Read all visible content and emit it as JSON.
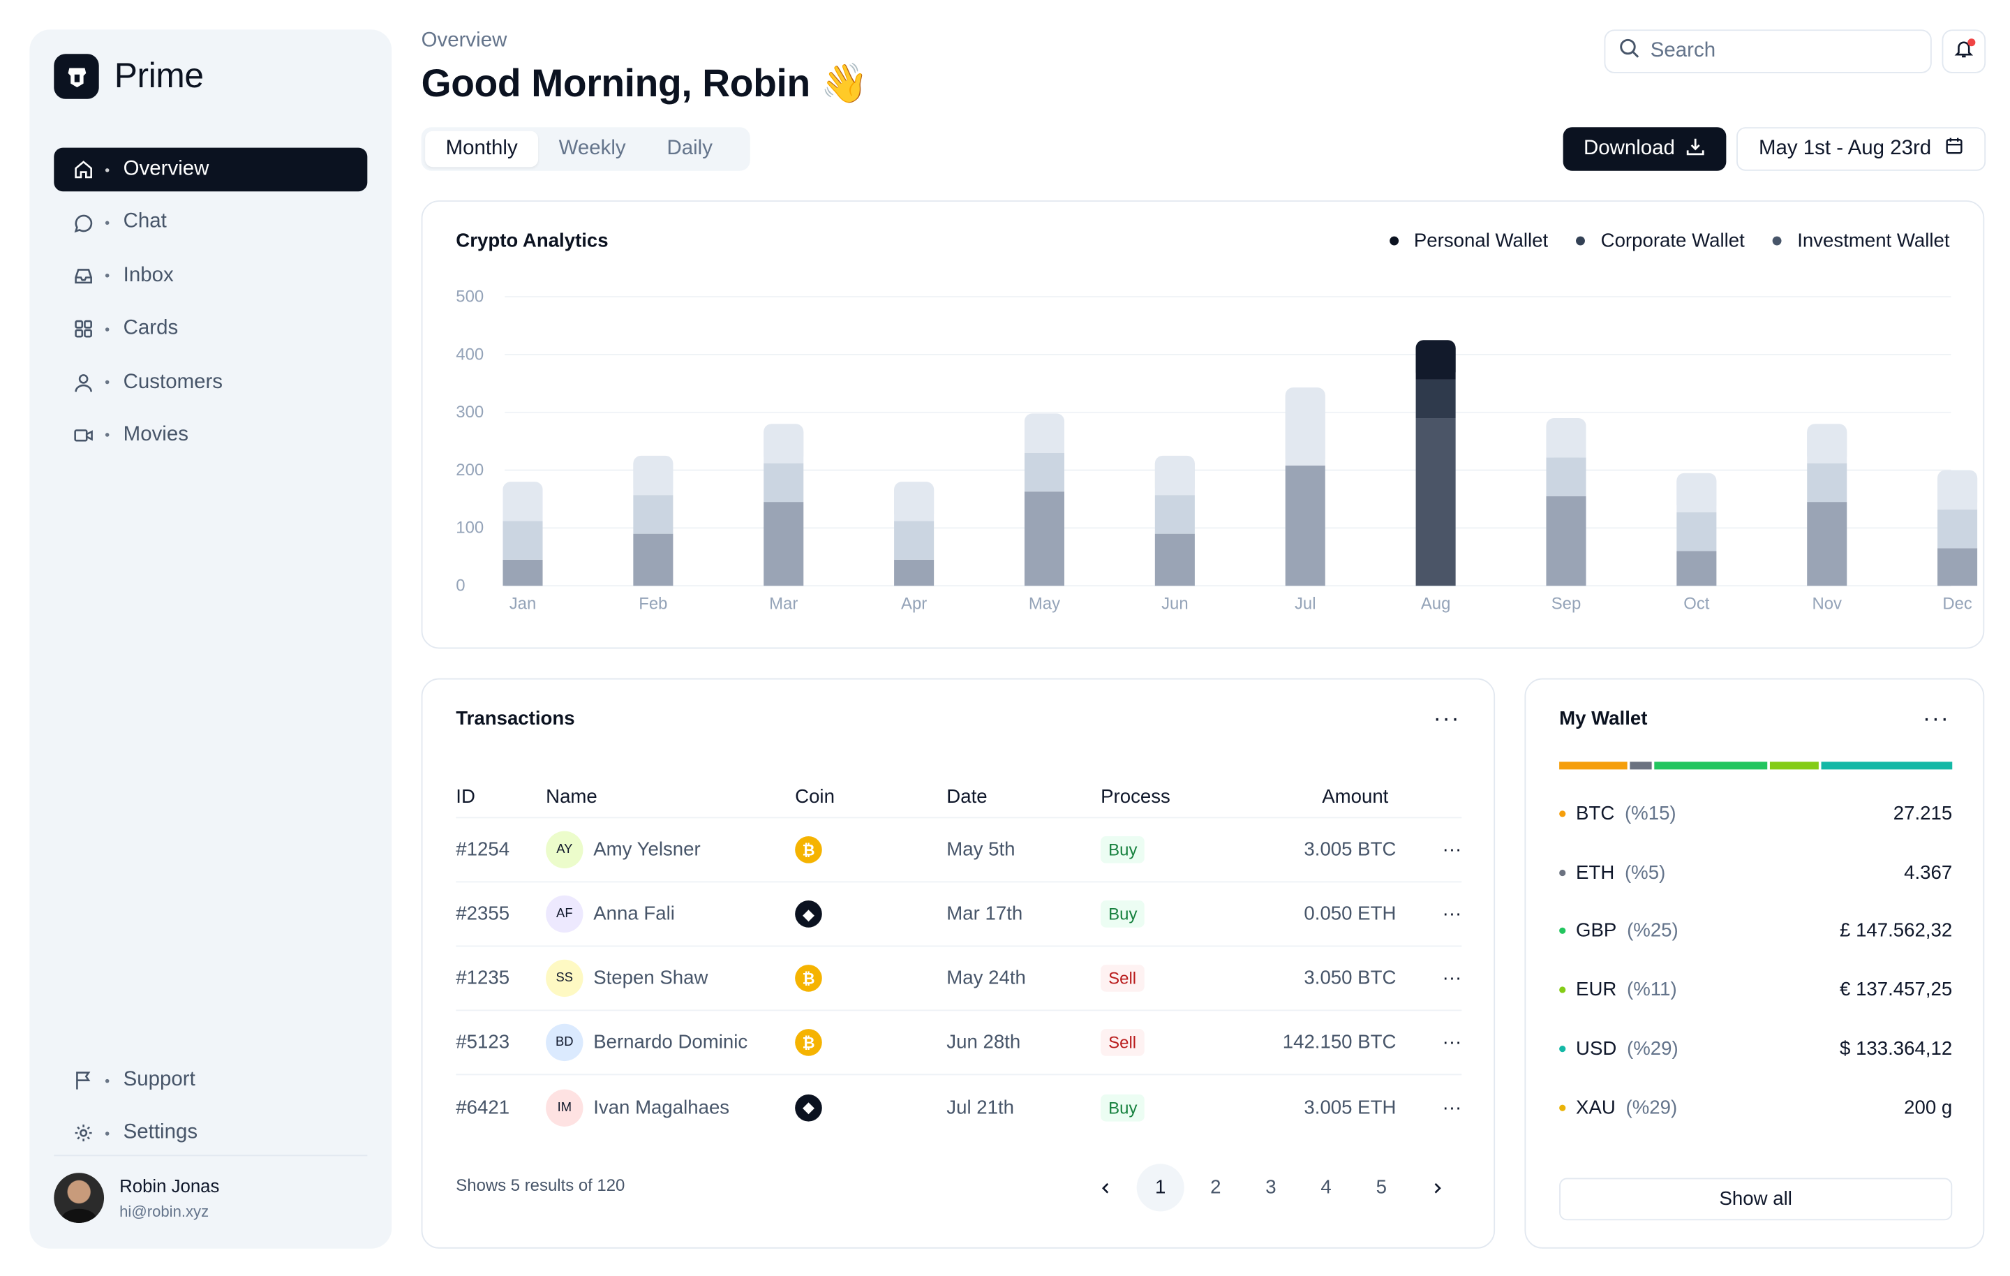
{
  "brand": {
    "name": "Prime"
  },
  "sidebar": {
    "items": [
      {
        "label": "Overview",
        "icon": "home-icon",
        "active": true
      },
      {
        "label": "Chat",
        "icon": "chat-icon"
      },
      {
        "label": "Inbox",
        "icon": "inbox-icon"
      },
      {
        "label": "Cards",
        "icon": "grid-icon"
      },
      {
        "label": "Customers",
        "icon": "user-icon"
      },
      {
        "label": "Movies",
        "icon": "video-icon"
      }
    ],
    "bottom": [
      {
        "label": "Support",
        "icon": "flag-icon"
      },
      {
        "label": "Settings",
        "icon": "gear-icon"
      }
    ],
    "user": {
      "name": "Robin Jonas",
      "email": "hi@robin.xyz"
    }
  },
  "header": {
    "breadcrumb": "Overview",
    "greeting": "Good Morning, Robin",
    "emoji": "👋",
    "search_placeholder": "Search",
    "tabs": [
      {
        "label": "Monthly",
        "active": true
      },
      {
        "label": "Weekly"
      },
      {
        "label": "Daily"
      }
    ],
    "download_label": "Download",
    "date_range": "May 1st - Aug 23rd"
  },
  "analytics": {
    "title": "Crypto Analytics",
    "colors": {
      "bottom": "#9aa4b5",
      "middle": "#cbd5e1",
      "top": "#e2e8f0",
      "hl_bottom": "#4b5567",
      "hl_middle": "#2f3a4c",
      "hl_top": "#121a2b"
    }
  },
  "chart_data": {
    "type": "bar",
    "stacked": true,
    "categories": [
      "Jan",
      "Feb",
      "Mar",
      "Apr",
      "May",
      "Jun",
      "Jul",
      "Aug",
      "Sep",
      "Oct",
      "Nov",
      "Dec"
    ],
    "series": [
      {
        "name": "Personal Wallet",
        "color": "#0b1220",
        "values": [
          45,
          90,
          145,
          45,
          163,
          90,
          208,
          290,
          155,
          60,
          145,
          65
        ]
      },
      {
        "name": "Corporate Wallet",
        "color": "#334155",
        "values": [
          67,
          67,
          67,
          67,
          67,
          67,
          0,
          67,
          67,
          67,
          67,
          67
        ]
      },
      {
        "name": "Investment Wallet",
        "color": "#475569",
        "values": [
          68,
          68,
          68,
          68,
          68,
          68,
          135,
          68,
          68,
          68,
          68,
          68
        ]
      }
    ],
    "highlight": "Aug",
    "yticks": [
      0,
      100,
      200,
      300,
      400,
      500
    ],
    "ylim": [
      0,
      500
    ]
  },
  "transactions": {
    "title": "Transactions",
    "columns": [
      "ID",
      "Name",
      "Coin",
      "Date",
      "Process",
      "Amount"
    ],
    "rows": [
      {
        "id": "#1254",
        "initials": "AY",
        "avatar_bg": "#ecfccb",
        "name": "Amy Yelsner",
        "coin": "btc",
        "date": "May 5th",
        "process": "Buy",
        "amount": "3.005 BTC"
      },
      {
        "id": "#2355",
        "initials": "AF",
        "avatar_bg": "#ede9fe",
        "name": "Anna Fali",
        "coin": "eth",
        "date": "Mar 17th",
        "process": "Buy",
        "amount": "0.050 ETH"
      },
      {
        "id": "#1235",
        "initials": "SS",
        "avatar_bg": "#fef9c3",
        "name": "Stepen Shaw",
        "coin": "btc",
        "date": "May 24th",
        "process": "Sell",
        "amount": "3.050 BTC"
      },
      {
        "id": "#5123",
        "initials": "BD",
        "avatar_bg": "#dbeafe",
        "name": "Bernardo Dominic",
        "coin": "btc",
        "date": "Jun 28th",
        "process": "Sell",
        "amount": "142.150 BTC"
      },
      {
        "id": "#6421",
        "initials": "IM",
        "avatar_bg": "#fee2e2",
        "name": "Ivan Magalhaes",
        "coin": "eth",
        "date": "Jul 21th",
        "process": "Buy",
        "amount": "3.005 ETH"
      }
    ],
    "footer": "Shows 5 results of 120",
    "pages": [
      "1",
      "2",
      "3",
      "4",
      "5"
    ],
    "current_page": "1"
  },
  "wallet": {
    "title": "My Wallet",
    "bar": [
      {
        "name": "BTC",
        "color": "#f59e0b",
        "share": 0.15
      },
      {
        "name": "ETH",
        "color": "#6b7280",
        "share": 0.05
      },
      {
        "name": "GBP",
        "color": "#22c55e",
        "share": 0.25
      },
      {
        "name": "EUR",
        "color": "#84cc16",
        "share": 0.11
      },
      {
        "name": "USD",
        "color": "#14b8a6",
        "share": 0.29
      }
    ],
    "rows": [
      {
        "symbol": "BTC",
        "pct": "(%15)",
        "value": "27.215",
        "color": "#f59e0b"
      },
      {
        "symbol": "ETH",
        "pct": "(%5)",
        "value": "4.367",
        "color": "#6b7280"
      },
      {
        "symbol": "GBP",
        "pct": "(%25)",
        "value": "£ 147.562,32",
        "color": "#22c55e"
      },
      {
        "symbol": "EUR",
        "pct": "(%11)",
        "value": "€ 137.457,25",
        "color": "#84cc16"
      },
      {
        "symbol": "USD",
        "pct": "(%29)",
        "value": "$ 133.364,12",
        "color": "#14b8a6"
      },
      {
        "symbol": "XAU",
        "pct": "(%29)",
        "value": "200 g",
        "color": "#eab308"
      }
    ],
    "show_all": "Show all"
  }
}
